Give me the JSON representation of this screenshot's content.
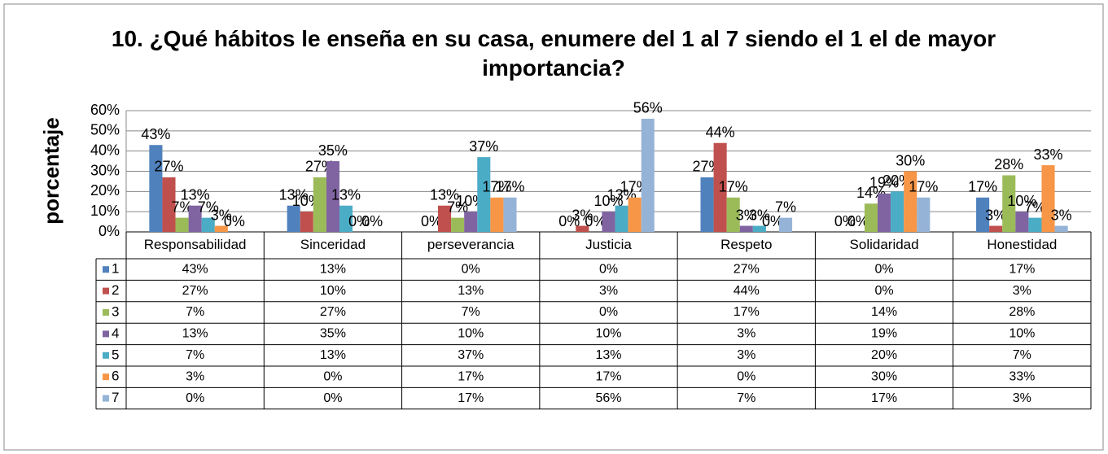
{
  "chart_data": {
    "type": "bar",
    "title": "10. ¿Qué hábitos le enseña en su casa, enumere del 1 al 7 siendo el 1 el de mayor importancia?",
    "ylabel": "porcentaje",
    "categories": [
      "Responsabilidad",
      "Sinceridad",
      "perseverancia",
      "Justicia",
      "Respeto",
      "Solidaridad",
      "Honestidad"
    ],
    "series": [
      {
        "name": "1",
        "color": "#4F81BD",
        "values": [
          43,
          13,
          0,
          0,
          27,
          0,
          17
        ],
        "value_labels": [
          "43%",
          "13%",
          "0%",
          "0%",
          "27%",
          "0%",
          "17%"
        ]
      },
      {
        "name": "2",
        "color": "#C0504D",
        "values": [
          27,
          10,
          13,
          3,
          44,
          0,
          3
        ],
        "value_labels": [
          "27%",
          "10%",
          "13%",
          "3%",
          "44%",
          "0%",
          "3%"
        ]
      },
      {
        "name": "3",
        "color": "#9BBB59",
        "values": [
          7,
          27,
          7,
          0,
          17,
          14,
          28
        ],
        "value_labels": [
          "7%",
          "27%",
          "7%",
          "0%",
          "17%",
          "14%",
          "28%"
        ]
      },
      {
        "name": "4",
        "color": "#8064A2",
        "values": [
          13,
          35,
          10,
          10,
          3,
          19,
          10
        ],
        "value_labels": [
          "13%",
          "35%",
          "10%",
          "10%",
          "3%",
          "19%",
          "10%"
        ]
      },
      {
        "name": "5",
        "color": "#4BACC6",
        "values": [
          7,
          13,
          37,
          13,
          3,
          20,
          7
        ],
        "value_labels": [
          "7%",
          "13%",
          "37%",
          "13%",
          "3%",
          "20%",
          "7%"
        ]
      },
      {
        "name": "6",
        "color": "#F79646",
        "values": [
          3,
          0,
          17,
          17,
          0,
          30,
          33
        ],
        "value_labels": [
          "3%",
          "0%",
          "17%",
          "17%",
          "0%",
          "30%",
          "33%"
        ]
      },
      {
        "name": "7",
        "color": "#95B3D7",
        "values": [
          0,
          0,
          17,
          56,
          7,
          17,
          3
        ],
        "value_labels": [
          "0%",
          "0%",
          "17%",
          "56%",
          "7%",
          "17%",
          "3%"
        ]
      }
    ],
    "ylim": [
      0,
      60
    ],
    "yticks": [
      {
        "value": 0,
        "label": "0%"
      },
      {
        "value": 10,
        "label": "10%"
      },
      {
        "value": 20,
        "label": "20%"
      },
      {
        "value": 30,
        "label": "30%"
      },
      {
        "value": 40,
        "label": "40%"
      },
      {
        "value": 50,
        "label": "50%"
      },
      {
        "value": 60,
        "label": "60%"
      }
    ],
    "grid": true
  }
}
